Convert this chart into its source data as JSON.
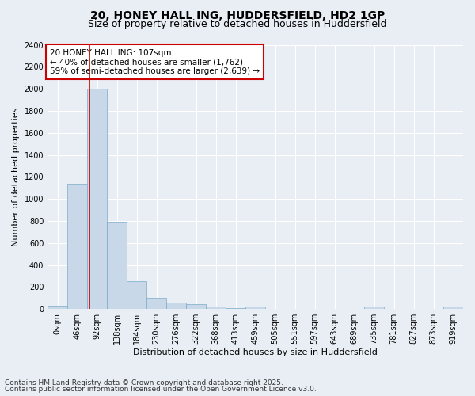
{
  "title_line1": "20, HONEY HALL ING, HUDDERSFIELD, HD2 1GP",
  "title_line2": "Size of property relative to detached houses in Huddersfield",
  "xlabel": "Distribution of detached houses by size in Huddersfield",
  "ylabel": "Number of detached properties",
  "categories": [
    "0sqm",
    "46sqm",
    "92sqm",
    "138sqm",
    "184sqm",
    "230sqm",
    "276sqm",
    "322sqm",
    "368sqm",
    "413sqm",
    "459sqm",
    "505sqm",
    "551sqm",
    "597sqm",
    "643sqm",
    "689sqm",
    "735sqm",
    "781sqm",
    "827sqm",
    "873sqm",
    "919sqm"
  ],
  "values": [
    30,
    1140,
    2000,
    790,
    255,
    100,
    60,
    45,
    25,
    10,
    20,
    0,
    0,
    0,
    0,
    0,
    20,
    0,
    0,
    0,
    20
  ],
  "bar_color": "#c8d8e8",
  "bar_edge_color": "#7aaac8",
  "bar_width": 1.0,
  "vline_x": 1.62,
  "vline_color": "#cc0000",
  "ylim": [
    0,
    2400
  ],
  "yticks": [
    0,
    200,
    400,
    600,
    800,
    1000,
    1200,
    1400,
    1600,
    1800,
    2000,
    2200,
    2400
  ],
  "annotation_text": "20 HONEY HALL ING: 107sqm\n← 40% of detached houses are smaller (1,762)\n59% of semi-detached houses are larger (2,639) →",
  "annotation_box_color": "#ffffff",
  "annotation_box_edge": "#cc0000",
  "background_color": "#e8eef4",
  "plot_bg_color": "#e8eef4",
  "footer_line1": "Contains HM Land Registry data © Crown copyright and database right 2025.",
  "footer_line2": "Contains public sector information licensed under the Open Government Licence v3.0.",
  "title_fontsize": 10,
  "subtitle_fontsize": 9,
  "xlabel_fontsize": 8,
  "ylabel_fontsize": 8,
  "tick_fontsize": 7,
  "annotation_fontsize": 7.5,
  "footer_fontsize": 6.5
}
